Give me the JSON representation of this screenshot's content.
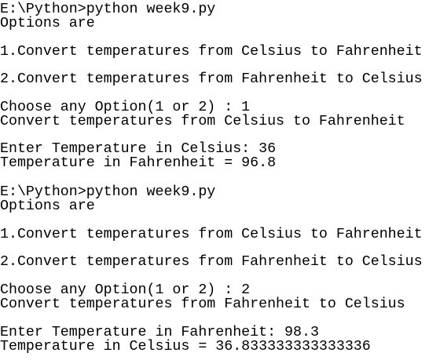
{
  "sessions": [
    {
      "command": "E:\\Python>python week9.py",
      "header": "Options are",
      "options": [
        "1.Convert temperatures from Celsius to Fahrenheit",
        "2.Convert temperatures from Fahrenheit to Celsius"
      ],
      "prompt": "Choose any Option(1 or 2) : 1",
      "selection": "Convert temperatures from Celsius to Fahrenheit",
      "input": "Enter Temperature in Celsius: 36",
      "result": "Temperature in Fahrenheit = 96.8"
    },
    {
      "command": "E:\\Python>python week9.py",
      "header": "Options are",
      "options": [
        "1.Convert temperatures from Celsius to Fahrenheit",
        "2.Convert temperatures from Fahrenheit to Celsius"
      ],
      "prompt": "Choose any Option(1 or 2) : 2",
      "selection": "Convert temperatures from Fahrenheit to Celsius",
      "input": "Enter Temperature in Fahrenheit: 98.3",
      "result": "Temperature in Celsius = 36.833333333333336"
    }
  ]
}
